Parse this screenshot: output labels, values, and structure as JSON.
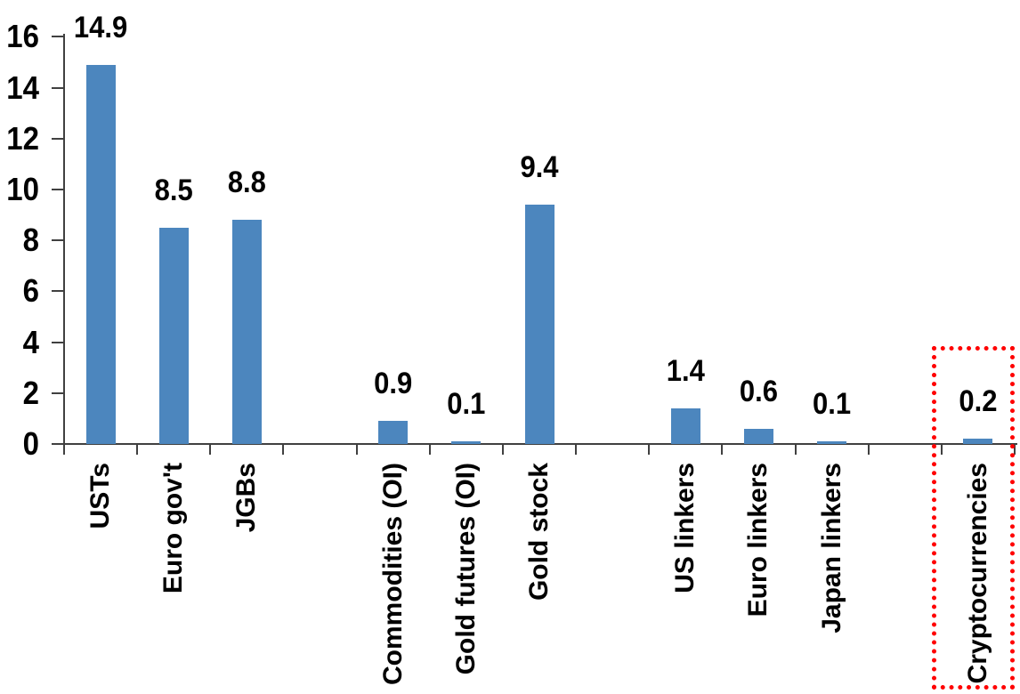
{
  "chart_data": {
    "type": "bar",
    "title": "",
    "xlabel": "",
    "ylabel": "",
    "categories": [
      "USTs",
      "Euro gov't",
      "JGBs",
      "Commodities (OI)",
      "Gold futures (OI)",
      "Gold stock",
      "US linkers",
      "Euro linkers",
      "Japan linkers",
      "Cryptocurrencies"
    ],
    "values": [
      14.9,
      8.5,
      8.8,
      0.9,
      0.1,
      9.4,
      1.4,
      0.6,
      0.1,
      0.2
    ],
    "data_labels": [
      "14.9",
      "8.5",
      "8.8",
      "0.9",
      "0.1",
      "9.4",
      "1.4",
      "0.6",
      "0.1",
      "0.2"
    ],
    "slot_layout": [
      "USTs",
      "Euro gov't",
      "JGBs",
      "",
      "Commodities (OI)",
      "Gold futures (OI)",
      "Gold stock",
      "",
      "US linkers",
      "Euro linkers",
      "Japan linkers",
      "",
      "Cryptocurrencies"
    ],
    "ylim": [
      0,
      16
    ],
    "ytick_step": 2,
    "ytick_labels": [
      "0",
      "2",
      "4",
      "6",
      "8",
      "10",
      "12",
      "14",
      "16"
    ],
    "grid": "off",
    "legend": "none",
    "bar_orientation": "vertical",
    "highlight": {
      "target": "Cryptocurrencies",
      "style": "dotted-outline",
      "color": "#FF0000"
    },
    "colors": {
      "bar": "#4C86BE",
      "axis": "#404040",
      "text": "#000000",
      "background": "#FFFFFF"
    }
  }
}
